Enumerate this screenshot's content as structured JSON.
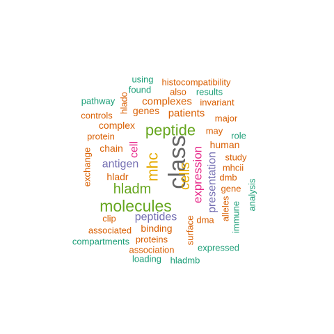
{
  "palette": {
    "green_teal": "#1b9e77",
    "orange": "#d95f02",
    "purple": "#7570b3",
    "magenta": "#e7298a",
    "lime": "#66a61e",
    "gold": "#e6ab02",
    "gray": "#666666"
  },
  "words": [
    {
      "text": "class",
      "color": "#666666"
    },
    {
      "text": "molecules",
      "color": "#66a61e"
    },
    {
      "text": "peptide",
      "color": "#66a61e"
    },
    {
      "text": "mhc",
      "color": "#e6ab02"
    },
    {
      "text": "hladm",
      "color": "#66a61e"
    },
    {
      "text": "cells",
      "color": "#e6ab02"
    },
    {
      "text": "expression",
      "color": "#e7298a"
    },
    {
      "text": "antigen",
      "color": "#7570b3"
    },
    {
      "text": "peptides",
      "color": "#7570b3"
    },
    {
      "text": "presentation",
      "color": "#7570b3"
    },
    {
      "text": "cell",
      "color": "#e7298a"
    },
    {
      "text": "complexes",
      "color": "#d95f02"
    },
    {
      "text": "patients",
      "color": "#d95f02"
    },
    {
      "text": "genes",
      "color": "#d95f02"
    },
    {
      "text": "complex",
      "color": "#d95f02"
    },
    {
      "text": "human",
      "color": "#d95f02"
    },
    {
      "text": "binding",
      "color": "#d95f02"
    },
    {
      "text": "hladr",
      "color": "#d95f02"
    },
    {
      "text": "chain",
      "color": "#d95f02"
    },
    {
      "text": "invariant",
      "color": "#d95f02"
    },
    {
      "text": "major",
      "color": "#d95f02"
    },
    {
      "text": "may",
      "color": "#d95f02"
    },
    {
      "text": "study",
      "color": "#d95f02"
    },
    {
      "text": "mhcii",
      "color": "#d95f02"
    },
    {
      "text": "dmb",
      "color": "#d95f02"
    },
    {
      "text": "gene",
      "color": "#d95f02"
    },
    {
      "text": "protein",
      "color": "#d95f02"
    },
    {
      "text": "histocompatibility",
      "color": "#d95f02"
    },
    {
      "text": "also",
      "color": "#d95f02"
    },
    {
      "text": "controls",
      "color": "#d95f02"
    },
    {
      "text": "exchange",
      "color": "#d95f02"
    },
    {
      "text": "clip",
      "color": "#d95f02"
    },
    {
      "text": "associated",
      "color": "#d95f02"
    },
    {
      "text": "proteins",
      "color": "#d95f02"
    },
    {
      "text": "association",
      "color": "#d95f02"
    },
    {
      "text": "surface",
      "color": "#d95f02"
    },
    {
      "text": "dma",
      "color": "#d95f02"
    },
    {
      "text": "alleles",
      "color": "#d95f02"
    },
    {
      "text": "hlado",
      "color": "#d95f02"
    },
    {
      "text": "results",
      "color": "#1b9e77"
    },
    {
      "text": "role",
      "color": "#1b9e77"
    },
    {
      "text": "using",
      "color": "#1b9e77"
    },
    {
      "text": "found",
      "color": "#1b9e77"
    },
    {
      "text": "pathway",
      "color": "#1b9e77"
    },
    {
      "text": "compartments",
      "color": "#1b9e77"
    },
    {
      "text": "loading",
      "color": "#1b9e77"
    },
    {
      "text": "hladmb",
      "color": "#1b9e77"
    },
    {
      "text": "expressed",
      "color": "#1b9e77"
    },
    {
      "text": "immune",
      "color": "#1b9e77"
    },
    {
      "text": "analysis",
      "color": "#1b9e77"
    }
  ]
}
